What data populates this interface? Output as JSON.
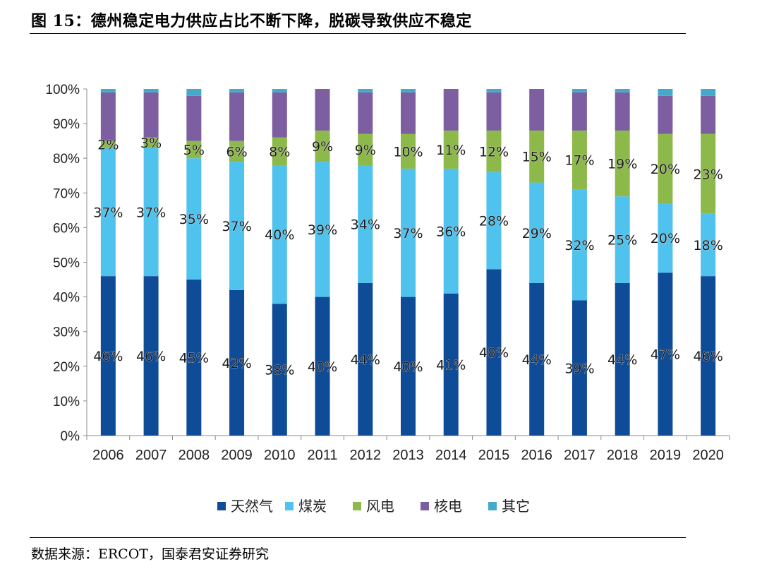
{
  "figure": {
    "title": "图 15：德州稳定电力供应占比不断下降，脱碳导致供应不稳定",
    "source": "数据来源：ERCOT，国泰君安证券研究"
  },
  "chart_data": {
    "type": "bar",
    "stacked": true,
    "title": "",
    "xlabel": "",
    "ylabel": "",
    "ylim": [
      0,
      100
    ],
    "y_ticks": [
      "0%",
      "10%",
      "20%",
      "30%",
      "40%",
      "50%",
      "60%",
      "70%",
      "80%",
      "90%",
      "100%"
    ],
    "grid": false,
    "legend_position": "bottom",
    "categories": [
      "2006",
      "2007",
      "2008",
      "2009",
      "2010",
      "2011",
      "2012",
      "2013",
      "2014",
      "2015",
      "2016",
      "2017",
      "2018",
      "2019",
      "2020"
    ],
    "series": [
      {
        "name": "天然气",
        "color": "#0f4c98",
        "values": [
          46,
          46,
          45,
          42,
          38,
          40,
          44,
          40,
          41,
          48,
          44,
          39,
          44,
          47,
          46
        ],
        "labels": [
          "46%",
          "46%",
          "45%",
          "42%",
          "38%",
          "40%",
          "44%",
          "40%",
          "41%",
          "48%",
          "44%",
          "39%",
          "44%",
          "47%",
          "46%"
        ]
      },
      {
        "name": "煤炭",
        "color": "#4fc2ee",
        "values": [
          37,
          37,
          35,
          37,
          40,
          39,
          34,
          37,
          36,
          28,
          29,
          32,
          25,
          20,
          18
        ],
        "labels": [
          "37%",
          "37%",
          "35%",
          "37%",
          "40%",
          "39%",
          "34%",
          "37%",
          "36%",
          "28%",
          "29%",
          "32%",
          "25%",
          "20%",
          "18%"
        ]
      },
      {
        "name": "风电",
        "color": "#8db84a",
        "values": [
          2,
          3,
          5,
          6,
          8,
          9,
          9,
          10,
          11,
          12,
          15,
          17,
          19,
          20,
          23
        ],
        "labels": [
          "2%",
          "3%",
          "5%",
          "6%",
          "8%",
          "9%",
          "9%",
          "10%",
          "11%",
          "12%",
          "15%",
          "17%",
          "19%",
          "20%",
          "23%"
        ]
      },
      {
        "name": "核电",
        "color": "#7d5fa1",
        "values": [
          14,
          13,
          13,
          14,
          13,
          12,
          12,
          12,
          12,
          11,
          12,
          11,
          11,
          11,
          11
        ]
      },
      {
        "name": "其它",
        "color": "#45a9c9",
        "values": [
          1,
          1,
          2,
          1,
          1,
          0,
          1,
          1,
          0,
          1,
          0,
          1,
          1,
          2,
          2
        ]
      }
    ]
  }
}
